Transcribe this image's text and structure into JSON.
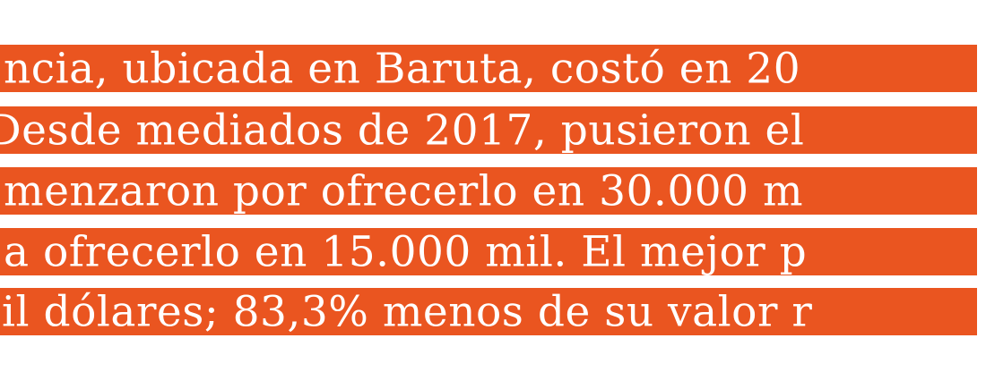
{
  "lines": [
    "ncia, ubicada en Baruta, costó en 20",
    "Desde mediados de 2017, pusieron el",
    "menzaron por ofrecerlo en 30.000 m",
    "a ofrecerlo en 15.000 mil. El mejor p",
    "il dólares; 83,3% menos de su valor r"
  ]
}
